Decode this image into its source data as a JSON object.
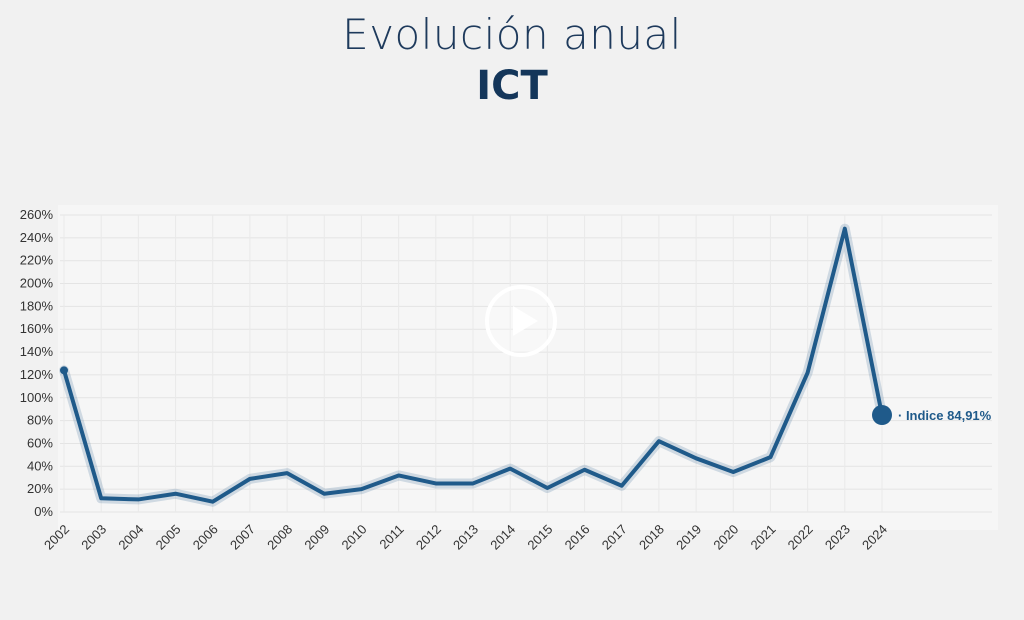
{
  "header": {
    "title": "Evolución anual",
    "subtitle": "ICT"
  },
  "player": {
    "icon": "play-icon"
  },
  "chart_data": {
    "type": "line",
    "title": "Evolución anual",
    "subtitle": "ICT",
    "xlabel": "",
    "ylabel": "",
    "categories": [
      "2002",
      "2003",
      "2004",
      "2005",
      "2006",
      "2007",
      "2008",
      "2009",
      "2010",
      "2011",
      "2012",
      "2013",
      "2014",
      "2015",
      "2016",
      "2017",
      "2018",
      "2019",
      "2020",
      "2021",
      "2022",
      "2023",
      "2024"
    ],
    "series": [
      {
        "values": [
          124,
          12,
          11,
          16,
          9,
          29,
          34,
          16,
          20,
          32,
          25,
          25,
          38,
          21,
          37,
          23,
          62,
          47,
          35,
          48,
          122,
          248,
          84.91
        ],
        "color": "#1f5a8a"
      }
    ],
    "ylim": [
      0,
      260
    ],
    "yticks": [
      0,
      20,
      40,
      60,
      80,
      100,
      120,
      140,
      160,
      180,
      200,
      220,
      240,
      260
    ],
    "ytick_labels": [
      "0%",
      "20%",
      "40%",
      "60%",
      "80%",
      "100%",
      "120%",
      "140%",
      "160%",
      "180%",
      "200%",
      "220%",
      "240%",
      "260%"
    ],
    "grid": true,
    "annotation": {
      "category": "2024",
      "label": "· Indice 84,91%"
    }
  }
}
